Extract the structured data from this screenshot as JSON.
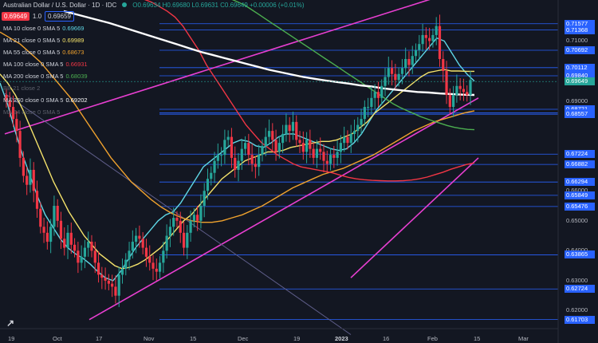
{
  "header": {
    "title": "Australian Dollar / U.S. Dollar · 1D · IDC",
    "ohlc": "O0.69634 H0.69680 L0.69631 C0.69649 +0.00006 (+0.01%)",
    "sell_price": "0.69649",
    "spread": "1.0",
    "buy_price": "0.69659"
  },
  "legend": [
    {
      "label": "MA 10 close 0 SMA 5",
      "value": "0.69669",
      "color": "#5fd7e6"
    },
    {
      "label": "MA 21 close 0 SMA 5",
      "value": "0.69989",
      "color": "#f5e36b"
    },
    {
      "label": "MA 55 close 0 SMA 5",
      "value": "0.68673",
      "color": "#f0a22e"
    },
    {
      "label": "MA 100 close 0 SMA 5",
      "value": "0.66931",
      "color": "#f23645"
    },
    {
      "label": "MA 200 close 0 SMA 5",
      "value": "0.68039",
      "color": "#4caf50"
    },
    {
      "label": "BB 21 close 2",
      "value": "",
      "color": "#5d606b"
    },
    {
      "label": "MA 260 close 0 SMA 5",
      "value": "0.69202",
      "color": "#ffffff"
    },
    {
      "label": "MA 34 close 0 SMA 5",
      "value": "",
      "color": "#5d606b"
    }
  ],
  "chart_data": {
    "type": "candlestick",
    "symbol": "AUDUSD",
    "ylim": [
      0.614,
      0.7205
    ],
    "x_tick_labels": [
      "19",
      "Oct",
      "17",
      "Nov",
      "15",
      "Dec",
      "19",
      "2023",
      "16",
      "Feb",
      "15",
      "Mar"
    ],
    "price_tick_labels": [
      "0.71000",
      "0.70000",
      "0.69000",
      "0.66000",
      "0.65000",
      "0.64000",
      "0.63000",
      "0.62000"
    ],
    "price_markers": [
      {
        "value": "0.71577",
        "bg": "#2962ff",
        "fg": "#ffffff"
      },
      {
        "value": "0.71368",
        "bg": "#2962ff",
        "fg": "#ffffff"
      },
      {
        "value": "0.70692",
        "bg": "#2962ff",
        "fg": "#ffffff"
      },
      {
        "value": "0.70112",
        "bg": "#2962ff",
        "fg": "#ffffff"
      },
      {
        "value": "0.69840",
        "bg": "#2962ff",
        "fg": "#ffffff"
      },
      {
        "value": "0.69649",
        "bg": "#26a69a",
        "fg": "#ffffff"
      },
      {
        "value": "0.68721",
        "bg": "#2962ff",
        "fg": "#ffffff"
      },
      {
        "value": "0.68601",
        "bg": "#2962ff",
        "fg": "#ffffff"
      },
      {
        "value": "0.68557",
        "bg": "#2962ff",
        "fg": "#ffffff"
      },
      {
        "value": "0.67224",
        "bg": "#2962ff",
        "fg": "#ffffff"
      },
      {
        "value": "0.66882",
        "bg": "#2962ff",
        "fg": "#ffffff"
      },
      {
        "value": "0.66294",
        "bg": "#2962ff",
        "fg": "#ffffff"
      },
      {
        "value": "0.65849",
        "bg": "#2962ff",
        "fg": "#ffffff"
      },
      {
        "value": "0.65476",
        "bg": "#2962ff",
        "fg": "#ffffff"
      },
      {
        "value": "0.63865",
        "bg": "#2962ff",
        "fg": "#ffffff"
      },
      {
        "value": "0.62724",
        "bg": "#2962ff",
        "fg": "#ffffff"
      },
      {
        "value": "0.61703",
        "bg": "#2962ff",
        "fg": "#ffffff"
      }
    ],
    "horizontal_levels": [
      0.71577,
      0.71368,
      0.70692,
      0.70112,
      0.6984,
      0.68721,
      0.68601,
      0.68557,
      0.67224,
      0.66882,
      0.66294,
      0.65849,
      0.65476,
      0.63865,
      0.62724,
      0.61703
    ],
    "closes": [
      0.69,
      0.688,
      0.684,
      0.68,
      0.671,
      0.665,
      0.662,
      0.667,
      0.66,
      0.654,
      0.648,
      0.646,
      0.643,
      0.648,
      0.655,
      0.65,
      0.644,
      0.641,
      0.646,
      0.642,
      0.64,
      0.636,
      0.638,
      0.641,
      0.643,
      0.64,
      0.636,
      0.632,
      0.631,
      0.63,
      0.629,
      0.628,
      0.625,
      0.632,
      0.634,
      0.637,
      0.64,
      0.643,
      0.645,
      0.644,
      0.641,
      0.638,
      0.636,
      0.634,
      0.633,
      0.636,
      0.64,
      0.645,
      0.648,
      0.651,
      0.65,
      0.646,
      0.641,
      0.646,
      0.65,
      0.652,
      0.65,
      0.655,
      0.66,
      0.664,
      0.666,
      0.67,
      0.672,
      0.672,
      0.677,
      0.678,
      0.671,
      0.667,
      0.67,
      0.674,
      0.676,
      0.672,
      0.669,
      0.668,
      0.672,
      0.675,
      0.678,
      0.68,
      0.677,
      0.673,
      0.676,
      0.679,
      0.682,
      0.68,
      0.683,
      0.677,
      0.676,
      0.673,
      0.677,
      0.674,
      0.671,
      0.674,
      0.673,
      0.67,
      0.669,
      0.672,
      0.671,
      0.673,
      0.676,
      0.678,
      0.676,
      0.679,
      0.68,
      0.682,
      0.684,
      0.688,
      0.688,
      0.691,
      0.693,
      0.691,
      0.695,
      0.698,
      0.701,
      0.699,
      0.697,
      0.699,
      0.701,
      0.704,
      0.702,
      0.705,
      0.707,
      0.709,
      0.712,
      0.711,
      0.71,
      0.712,
      0.715,
      0.704,
      0.7,
      0.692,
      0.688,
      0.692,
      0.695,
      0.694,
      0.693,
      0.692,
      0.697
    ],
    "moving_averages": [
      {
        "name": "MA 10",
        "color": "#5fd7e6",
        "values": [
          0.696,
          0.689,
          0.68,
          0.672,
          0.665,
          0.658,
          0.652,
          0.648,
          0.644,
          0.641,
          0.639,
          0.6375,
          0.6355,
          0.633,
          0.631,
          0.63,
          0.633,
          0.637,
          0.641,
          0.644,
          0.647,
          0.65,
          0.652,
          0.653,
          0.656,
          0.66,
          0.664,
          0.668,
          0.67,
          0.672,
          0.674,
          0.676,
          0.677,
          0.6765,
          0.675,
          0.6745,
          0.676,
          0.678,
          0.679,
          0.679,
          0.678,
          0.677,
          0.676,
          0.675,
          0.674,
          0.6735,
          0.674,
          0.676,
          0.679,
          0.683,
          0.687,
          0.69,
          0.693,
          0.696,
          0.699,
          0.702,
          0.705,
          0.708,
          0.711,
          0.71,
          0.706,
          0.702,
          0.699,
          0.6966
        ]
      },
      {
        "name": "MA 21",
        "color": "#f5e36b",
        "values": [
          0.699,
          0.696,
          0.692,
          0.687,
          0.681,
          0.675,
          0.669,
          0.663,
          0.658,
          0.653,
          0.649,
          0.645,
          0.642,
          0.639,
          0.637,
          0.635,
          0.634,
          0.6345,
          0.6355,
          0.637,
          0.639,
          0.641,
          0.644,
          0.647,
          0.65,
          0.652,
          0.655,
          0.658,
          0.661,
          0.664,
          0.666,
          0.668,
          0.67,
          0.671,
          0.672,
          0.673,
          0.673,
          0.6735,
          0.6745,
          0.675,
          0.6755,
          0.676,
          0.6765,
          0.6765,
          0.677,
          0.678,
          0.679,
          0.681,
          0.683,
          0.686,
          0.688,
          0.69,
          0.692,
          0.694,
          0.696,
          0.698,
          0.6995,
          0.7,
          0.7005,
          0.7,
          0.7,
          0.6999,
          0.6999
        ]
      },
      {
        "name": "MA 55",
        "color": "#f0a22e",
        "values": [
          0.713,
          0.711,
          0.709,
          0.706,
          0.703,
          0.699,
          0.695,
          0.691,
          0.686,
          0.681,
          0.676,
          0.671,
          0.667,
          0.663,
          0.66,
          0.657,
          0.6545,
          0.6525,
          0.651,
          0.65,
          0.6495,
          0.6495,
          0.65,
          0.651,
          0.652,
          0.6535,
          0.655,
          0.657,
          0.659,
          0.661,
          0.6625,
          0.664,
          0.6655,
          0.6665,
          0.6675,
          0.669,
          0.6705,
          0.672,
          0.674,
          0.676,
          0.678,
          0.68,
          0.6815,
          0.683,
          0.684,
          0.685,
          0.686,
          0.6867
        ]
      },
      {
        "name": "MA 100",
        "color": "#f23645",
        "values": [
          0.724,
          0.723,
          0.7215,
          0.72,
          0.718,
          0.715,
          0.711,
          0.707,
          0.702,
          0.698,
          0.694,
          0.69,
          0.686,
          0.682,
          0.679,
          0.676,
          0.674,
          0.672,
          0.6705,
          0.669,
          0.668,
          0.6675,
          0.667,
          0.6665,
          0.666,
          0.6652,
          0.6645,
          0.664,
          0.6637,
          0.6635,
          0.6634,
          0.6633,
          0.6633,
          0.6634,
          0.6636,
          0.664,
          0.6646,
          0.6654,
          0.6662,
          0.6672,
          0.668,
          0.6688,
          0.6693
        ]
      },
      {
        "name": "MA 200",
        "color": "#4caf50",
        "values": [
          0.724,
          0.723,
          0.722,
          0.7205,
          0.719,
          0.7175,
          0.716,
          0.7145,
          0.713,
          0.7115,
          0.71,
          0.7085,
          0.707,
          0.7055,
          0.704,
          0.7025,
          0.701,
          0.6995,
          0.698,
          0.6965,
          0.695,
          0.6935,
          0.692,
          0.6905,
          0.689,
          0.6878,
          0.6868,
          0.6858,
          0.6848,
          0.684,
          0.6832,
          0.6825,
          0.6818,
          0.6812,
          0.6808,
          0.6805,
          0.6804
        ]
      },
      {
        "name": "MA 260",
        "color": "#ffffff",
        "values": [
          0.72,
          0.719,
          0.718,
          0.717,
          0.716,
          0.7148,
          0.7136,
          0.7124,
          0.7112,
          0.71,
          0.7088,
          0.7076,
          0.7064,
          0.7054,
          0.7044,
          0.7034,
          0.7024,
          0.7014,
          0.7004,
          0.6996,
          0.6988,
          0.698,
          0.6974,
          0.6968,
          0.6963,
          0.6958,
          0.6952,
          0.6948,
          0.6942,
          0.6938,
          0.6934,
          0.693,
          0.6928,
          0.6925,
          0.6923,
          0.6921,
          0.692
        ]
      }
    ],
    "trend_lines": [
      {
        "name": "upper-channel",
        "color": "#e83fd1",
        "from": [
          "Sep 19",
          0.679
        ],
        "to": [
          "Feb 15",
          0.729
        ]
      },
      {
        "name": "lower-channel",
        "color": "#e83fd1",
        "from": [
          "Oct 13",
          0.617
        ],
        "to": [
          "Feb 15",
          0.691
        ]
      },
      {
        "name": "channel-outer",
        "color": "#e83fd1",
        "from": [
          "Jan 2",
          0.631
        ],
        "to": [
          "Feb 15",
          0.671
        ]
      },
      {
        "name": "descending-line",
        "color": "#5f5e8a",
        "from": [
          "Sep 19",
          0.6925
        ],
        "to": [
          "Jan 2",
          0.612
        ]
      }
    ],
    "grid": false
  }
}
